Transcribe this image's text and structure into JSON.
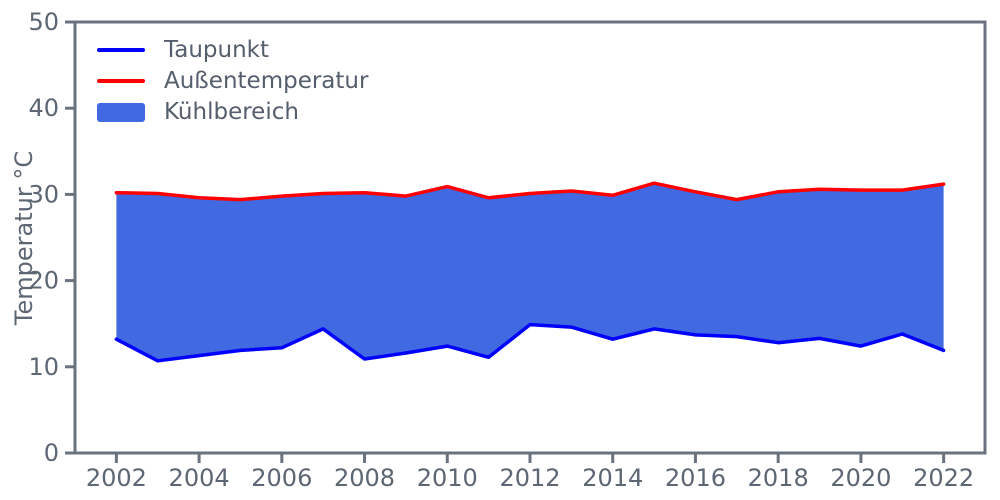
{
  "chart_data": {
    "type": "area",
    "title": "",
    "xlabel": "",
    "ylabel": "Temperatur °C",
    "x": [
      2002,
      2003,
      2004,
      2005,
      2006,
      2007,
      2008,
      2009,
      2010,
      2011,
      2012,
      2013,
      2014,
      2015,
      2016,
      2017,
      2018,
      2019,
      2020,
      2021,
      2022
    ],
    "series": [
      {
        "name": "Taupunkt",
        "color": "#0000ff",
        "values": [
          13.2,
          10.7,
          11.3,
          11.9,
          12.2,
          14.4,
          10.9,
          11.6,
          12.4,
          11.1,
          14.9,
          14.6,
          13.2,
          14.4,
          13.7,
          13.5,
          12.8,
          13.3,
          12.4,
          13.8,
          11.9
        ]
      },
      {
        "name": "Außentemperatur",
        "color": "#ff0000",
        "values": [
          30.2,
          30.1,
          29.6,
          29.4,
          29.8,
          30.1,
          30.2,
          29.8,
          30.9,
          29.6,
          30.1,
          30.4,
          29.9,
          31.3,
          30.3,
          29.4,
          30.3,
          30.6,
          30.5,
          30.5,
          31.2
        ]
      }
    ],
    "fill_between": {
      "label": "Kühlbereich",
      "color": "#4169e1",
      "upper": "Außentemperatur",
      "lower": "Taupunkt"
    },
    "legend": [
      {
        "label": "Taupunkt",
        "swatch": "line",
        "color": "#0000ff"
      },
      {
        "label": "Außentemperatur",
        "swatch": "line",
        "color": "#ff0000"
      },
      {
        "label": "Kühlbereich",
        "swatch": "patch",
        "color": "#4169e1"
      }
    ],
    "legend_position": "upper left",
    "grid": false,
    "xlim": [
      2001,
      2023
    ],
    "ylim": [
      0,
      50
    ],
    "xticks": [
      2002,
      2004,
      2006,
      2008,
      2010,
      2012,
      2014,
      2016,
      2018,
      2020,
      2022
    ],
    "yticks": [
      0,
      10,
      20,
      30,
      40,
      50
    ]
  },
  "style": {
    "spine_color": "#6a7280",
    "tick_text_color": "#5d6673",
    "legend_text_color": "#555e6c",
    "background": "#ffffff"
  }
}
